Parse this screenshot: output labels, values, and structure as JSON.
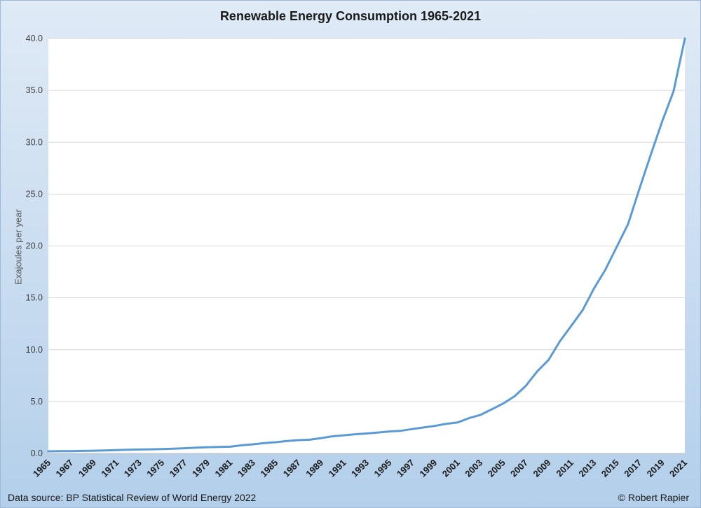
{
  "chart_data": {
    "type": "line",
    "title": "Renewable Energy Consumption 1965-2021",
    "xlabel": "",
    "ylabel": "Exajoules per year",
    "ylim": [
      0,
      40
    ],
    "y_ticks": [
      "0.0",
      "5.0",
      "10.0",
      "15.0",
      "20.0",
      "25.0",
      "30.0",
      "35.0",
      "40.0"
    ],
    "x_tick_labels": [
      "1965",
      "1967",
      "1969",
      "1971",
      "1973",
      "1975",
      "1977",
      "1979",
      "1981",
      "1983",
      "1985",
      "1987",
      "1989",
      "1991",
      "1993",
      "1995",
      "1997",
      "1999",
      "2001",
      "2003",
      "2005",
      "2007",
      "2009",
      "2011",
      "2013",
      "2015",
      "2017",
      "2019",
      "2021"
    ],
    "grid": "horizontal",
    "line_color": "#5b9bd5",
    "x": [
      1965,
      1966,
      1967,
      1968,
      1969,
      1970,
      1971,
      1972,
      1973,
      1974,
      1975,
      1976,
      1977,
      1978,
      1979,
      1980,
      1981,
      1982,
      1983,
      1984,
      1985,
      1986,
      1987,
      1988,
      1989,
      1990,
      1991,
      1992,
      1993,
      1994,
      1995,
      1996,
      1997,
      1998,
      1999,
      2000,
      2001,
      2002,
      2003,
      2004,
      2005,
      2006,
      2007,
      2008,
      2009,
      2010,
      2011,
      2012,
      2013,
      2014,
      2015,
      2016,
      2017,
      2018,
      2019,
      2020,
      2021
    ],
    "series": [
      {
        "values": [
          0.2,
          0.22,
          0.22,
          0.24,
          0.26,
          0.28,
          0.32,
          0.35,
          0.38,
          0.4,
          0.42,
          0.46,
          0.5,
          0.55,
          0.6,
          0.63,
          0.65,
          0.78,
          0.88,
          1.0,
          1.08,
          1.2,
          1.28,
          1.32,
          1.48,
          1.65,
          1.75,
          1.85,
          1.92,
          2.02,
          2.12,
          2.18,
          2.35,
          2.5,
          2.65,
          2.85,
          2.98,
          3.4,
          3.7,
          4.25,
          4.8,
          5.5,
          6.5,
          7.9,
          9.0,
          10.8,
          12.3,
          13.8,
          15.9,
          17.7,
          19.9,
          22.1,
          25.5,
          28.8,
          32.0,
          34.9,
          40.0
        ]
      }
    ]
  },
  "footer": {
    "source": "Data source: BP Statistical Review of World Energy 2022",
    "credit": "© Robert Rapier"
  }
}
